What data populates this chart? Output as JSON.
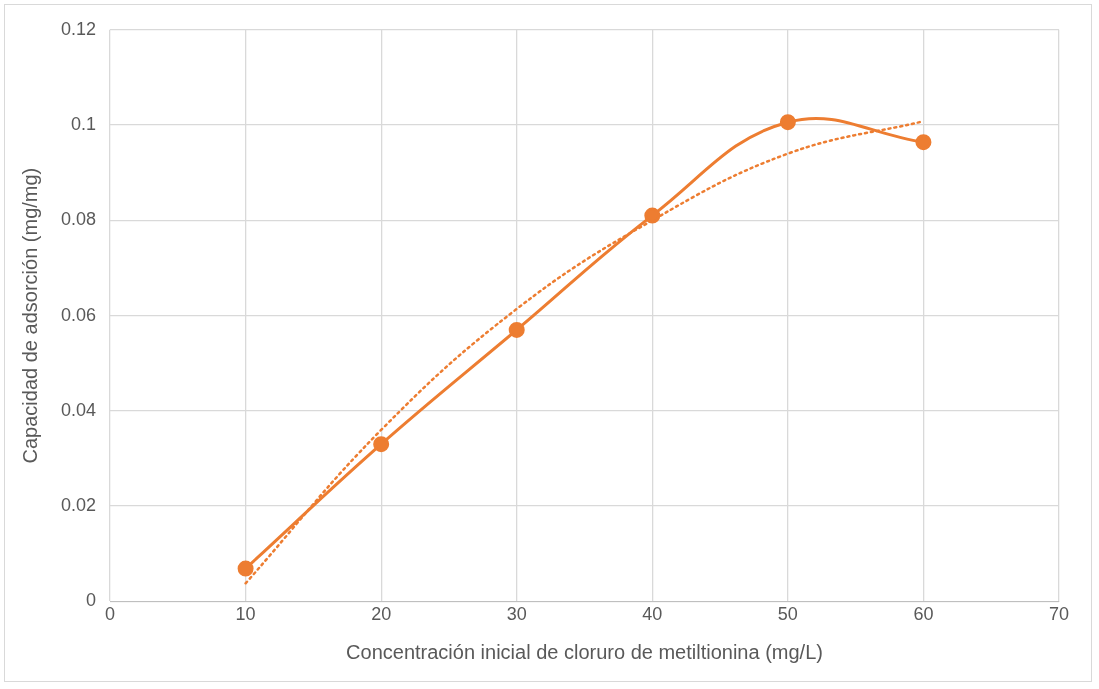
{
  "chart_data": {
    "type": "line",
    "xlabel": "Concentración inicial de cloruro de metiltionina (mg/L)",
    "ylabel": "Capacidad de adsorción (mg/mg)",
    "x": [
      10,
      20,
      30,
      40,
      50,
      60
    ],
    "series": [
      {
        "color": "#ed7d31",
        "marker": "circle",
        "line_style": "solid",
        "values": [
          0.0069,
          0.033,
          0.057,
          0.081,
          0.1006,
          0.0964
        ]
      },
      {
        "color": "#ed7d31",
        "marker": "none",
        "line_style": "dotted",
        "x": [
          10,
          20,
          30,
          40,
          50,
          60
        ],
        "values": [
          0.0038,
          0.036,
          0.0614,
          0.08,
          0.094,
          0.1008
        ]
      }
    ],
    "xlim": [
      0,
      70
    ],
    "xticks": [
      0,
      10,
      20,
      30,
      40,
      50,
      60,
      70
    ],
    "ylim": [
      0,
      0.12
    ],
    "yticks": [
      0,
      0.02,
      0.04,
      0.06,
      0.08,
      0.1,
      0.12
    ],
    "grid": true,
    "legend": false
  }
}
